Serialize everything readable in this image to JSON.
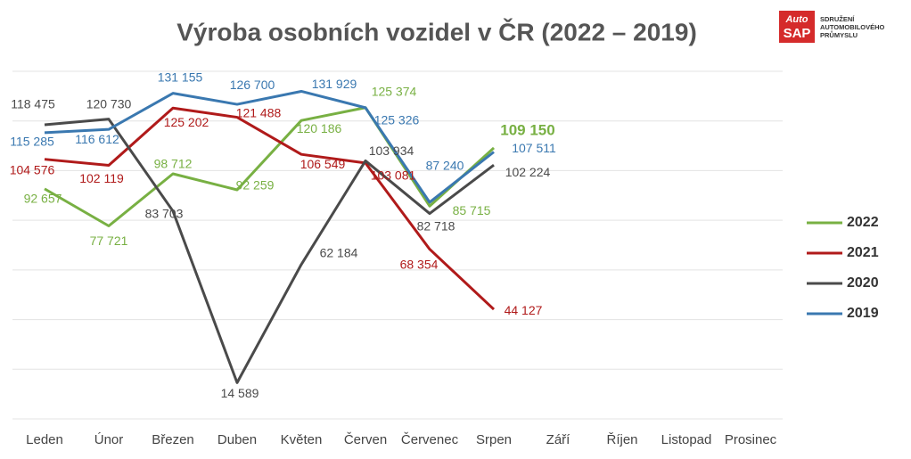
{
  "chart_data": {
    "type": "line",
    "title": "Výroba osobních vozidel v ČR (2022 – 2019)",
    "categories": [
      "Leden",
      "Únor",
      "Březen",
      "Duben",
      "Květen",
      "Červen",
      "Červenec",
      "Srpen",
      "Září",
      "Říjen",
      "Listopad",
      "Prosinec"
    ],
    "series": [
      {
        "name": "2022",
        "color": "#78b043",
        "values": [
          92657,
          77721,
          98712,
          92259,
          120186,
          125374,
          85715,
          109150,
          null,
          null,
          null,
          null
        ],
        "value_labels": [
          "92 657",
          "77 721",
          "98 712",
          "92 259",
          "120 186",
          "125 374",
          "85 715",
          "109 150",
          null,
          null,
          null,
          null
        ]
      },
      {
        "name": "2021",
        "color": "#b01a1a",
        "values": [
          104576,
          102119,
          125202,
          121488,
          106549,
          103081,
          68354,
          44127,
          null,
          null,
          null,
          null
        ],
        "value_labels": [
          "104 576",
          "102 119",
          "125 202",
          "121 488",
          "106 549",
          "103 081",
          "68 354",
          "44 127",
          null,
          null,
          null,
          null
        ]
      },
      {
        "name": "2020",
        "color": "#4a4a4a",
        "values": [
          118475,
          120730,
          83703,
          14589,
          62184,
          103934,
          82718,
          102224,
          null,
          null,
          null,
          null
        ],
        "value_labels": [
          "118 475",
          "120 730",
          "83 703",
          "14 589",
          "62 184",
          "103 934",
          "82 718",
          "102 224",
          null,
          null,
          null,
          null
        ]
      },
      {
        "name": "2019",
        "color": "#3a78b0",
        "values": [
          115285,
          116612,
          131155,
          126700,
          131929,
          125326,
          87240,
          107511,
          null,
          null,
          null,
          null
        ],
        "value_labels": [
          "115 285",
          "116 612",
          "131 155",
          "126 700",
          "131 929",
          "125 326",
          "87 240",
          "107 511",
          null,
          null,
          null,
          null
        ]
      }
    ],
    "ylim": [
      0,
      140000
    ],
    "yticks": [
      0,
      20000,
      40000,
      60000,
      80000,
      100000,
      120000,
      140000
    ],
    "grid": true,
    "legend": "right"
  },
  "logo": {
    "mark_top": "Auto",
    "mark_bottom": "SAP",
    "lines": [
      "SDRUŽENÍ",
      "AUTOMOBILOVÉHO",
      "PRŮMYSLU"
    ]
  }
}
